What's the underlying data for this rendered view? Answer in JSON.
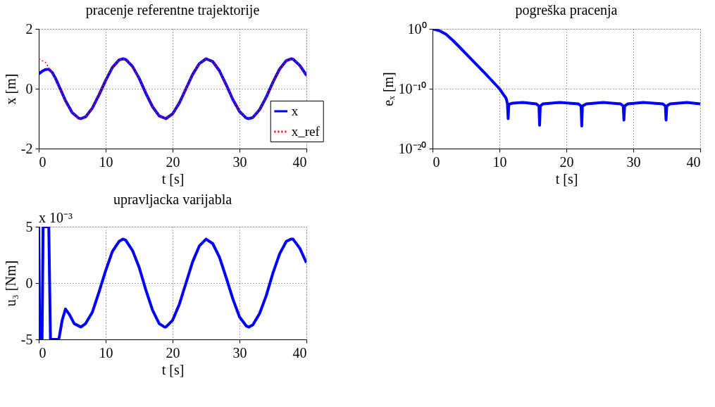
{
  "chart_data": [
    {
      "type": "line",
      "title": "pracenje referentne trajektorije",
      "xlabel": "t [s]",
      "ylabel": "x [m]",
      "xlim": [
        0,
        40
      ],
      "ylim": [
        -2,
        2
      ],
      "xticks": [
        0,
        10,
        20,
        30,
        40
      ],
      "yticks": [
        -2,
        0,
        2
      ],
      "grid": true,
      "legend": "bottom right",
      "series": [
        {
          "name": "x",
          "color": "#0000ff",
          "line_style": "solid",
          "x": [
            0,
            0.5,
            1,
            1.5,
            2,
            2.5,
            3,
            4,
            5,
            6,
            6.3,
            7,
            8,
            9,
            10,
            11,
            12,
            12.6,
            13,
            14,
            15,
            16,
            17,
            18,
            19,
            20,
            21,
            22,
            23,
            24,
            25,
            26,
            27,
            28,
            29,
            30,
            31,
            31.4,
            32,
            33,
            34,
            35,
            36,
            37,
            37.7,
            38,
            39,
            40
          ],
          "values": [
            0.5,
            0.58,
            0.64,
            0.65,
            0.55,
            0.35,
            0.1,
            -0.4,
            -0.8,
            -0.99,
            -1.0,
            -0.94,
            -0.65,
            -0.21,
            0.28,
            0.71,
            0.96,
            1.0,
            0.98,
            0.75,
            0.35,
            -0.15,
            -0.6,
            -0.91,
            -1.0,
            -0.84,
            -0.48,
            0.0,
            0.48,
            0.84,
            1.0,
            0.91,
            0.6,
            0.14,
            -0.36,
            -0.76,
            -0.98,
            -1.0,
            -0.96,
            -0.7,
            -0.28,
            0.22,
            0.66,
            0.94,
            1.0,
            0.99,
            0.78,
            0.45
          ]
        },
        {
          "name": "x_ref",
          "color": "#ff0000",
          "line_style": "dotted",
          "x": [
            0,
            1,
            2,
            3,
            4,
            5,
            6,
            6.3,
            7,
            8,
            9,
            10,
            11,
            12,
            12.6,
            13,
            14,
            15,
            16,
            17,
            18,
            19,
            20,
            21,
            22,
            23,
            24,
            25,
            26,
            27,
            28,
            29,
            30,
            31,
            31.4,
            32,
            33,
            34,
            35,
            36,
            37,
            37.7,
            38,
            39,
            40
          ],
          "values": [
            1.0,
            0.88,
            0.54,
            0.07,
            -0.42,
            -0.8,
            -0.99,
            -1.0,
            -0.94,
            -0.65,
            -0.21,
            0.28,
            0.71,
            0.96,
            1.0,
            0.98,
            0.75,
            0.35,
            -0.15,
            -0.6,
            -0.91,
            -1.0,
            -0.84,
            -0.48,
            0.0,
            0.48,
            0.84,
            1.0,
            0.91,
            0.6,
            0.14,
            -0.36,
            -0.76,
            -0.98,
            -1.0,
            -0.96,
            -0.7,
            -0.28,
            0.22,
            0.66,
            0.94,
            1.0,
            0.99,
            0.78,
            0.41
          ]
        }
      ]
    },
    {
      "type": "line",
      "title": "pogreška pracenja",
      "xlabel": "t [s]",
      "ylabel": "eₓ [m]",
      "xlim": [
        0,
        40
      ],
      "ylim": [
        1e-20,
        1
      ],
      "xticks": [
        0,
        10,
        20,
        30,
        40
      ],
      "yticks": [
        {
          "value": 1,
          "label": "10⁰"
        },
        {
          "value": 1e-10,
          "label": "10⁻¹⁰"
        },
        {
          "value": 1e-20,
          "label": "10⁻²⁰"
        }
      ],
      "log": "y",
      "grid": true,
      "series": [
        {
          "color": "#0000ff",
          "line_style": "solid",
          "x": [
            0,
            1,
            2,
            3,
            4,
            6,
            8,
            10,
            11,
            11.2,
            11.3,
            11.4,
            12,
            13.5,
            15.5,
            15.9,
            16.0,
            16.1,
            16.5,
            19,
            21.8,
            22.2,
            22.3,
            22.4,
            23,
            25.5,
            28.1,
            28.5,
            28.6,
            28.7,
            29.2,
            31.5,
            34.4,
            34.8,
            34.9,
            35.0,
            35.5,
            38,
            40
          ],
          "values": [
            1,
            0.5,
            0.13,
            0.013,
            0.001,
            5e-06,
            2.5e-08,
            1e-10,
            2.5e-12,
            3e-13,
            1e-15,
            2.5e-13,
            4e-13,
            5e-13,
            3e-13,
            1.3e-13,
            8e-17,
            1.3e-13,
            3e-13,
            5e-13,
            3e-13,
            1.3e-13,
            6e-17,
            1.3e-13,
            3e-13,
            5e-13,
            3e-13,
            1.3e-13,
            6e-16,
            1.3e-13,
            3e-13,
            5e-13,
            3e-13,
            1.3e-13,
            6e-16,
            1.3e-13,
            3e-13,
            5e-13,
            3e-13
          ]
        }
      ]
    },
    {
      "type": "line",
      "title": "upravljacka varijabla",
      "xlabel": "t [s]",
      "ylabel": "u₃ [Nm]",
      "xlim": [
        0,
        40
      ],
      "ylim": [
        -5,
        5
      ],
      "xticks": [
        0,
        10,
        20,
        30,
        40
      ],
      "yticks": [
        -5,
        0,
        5
      ],
      "grid": true,
      "annotations": [
        "x 10⁻³"
      ],
      "series": [
        {
          "color": "#0000ff",
          "line_style": "solid",
          "x": [
            0,
            0.15,
            0.5,
            0.65,
            1.5,
            1.75,
            3.0,
            3.5,
            4,
            4.6,
            5.3,
            6.3,
            7,
            8,
            9,
            10,
            11,
            12,
            12.6,
            13,
            14,
            15,
            16,
            17,
            18,
            18.8,
            19,
            20,
            21,
            22,
            23,
            24,
            25,
            26,
            27,
            28,
            29,
            30,
            31,
            31.4,
            32,
            33,
            34,
            35,
            36,
            37,
            37.7,
            38,
            39,
            40
          ],
          "values": [
            5,
            -5,
            -5,
            5,
            5,
            -5,
            -5,
            -3.3,
            -2.3,
            -2.8,
            -3.6,
            -3.9,
            -3.6,
            -2.6,
            -0.8,
            1.1,
            2.8,
            3.7,
            3.9,
            3.8,
            2.9,
            1.4,
            -0.6,
            -2.4,
            -3.6,
            -3.9,
            -3.9,
            -3.3,
            -1.9,
            0.0,
            1.9,
            3.3,
            3.9,
            3.5,
            2.3,
            0.5,
            -1.4,
            -3.0,
            -3.8,
            -3.9,
            -3.7,
            -2.7,
            -1.1,
            0.9,
            2.6,
            3.7,
            3.9,
            3.9,
            3.1,
            1.8
          ]
        }
      ]
    }
  ]
}
